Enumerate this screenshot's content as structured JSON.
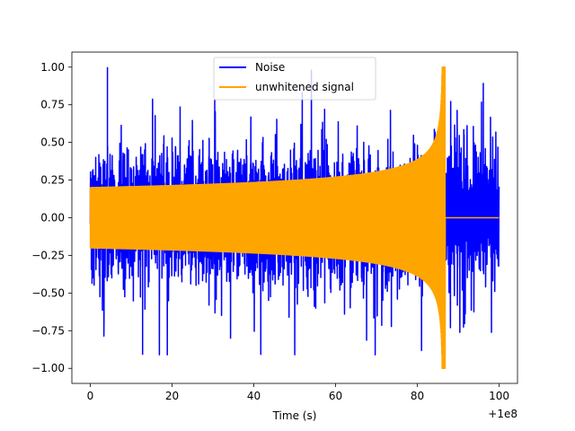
{
  "chart_data": {
    "type": "line",
    "title": "",
    "xlabel": "Time (s)",
    "ylabel": "",
    "x_offset_label": "+1e8",
    "xlim": [
      -4.5,
      104.5
    ],
    "ylim": [
      -1.1,
      1.1
    ],
    "x_ticks": [
      0,
      20,
      40,
      60,
      80,
      100
    ],
    "x_tick_labels": [
      "0",
      "20",
      "40",
      "60",
      "80",
      "100"
    ],
    "y_ticks": [
      -1.0,
      -0.75,
      -0.5,
      -0.25,
      0.0,
      0.25,
      0.5,
      0.75,
      1.0
    ],
    "y_tick_labels": [
      "−1.00",
      "−0.75",
      "−0.50",
      "−0.25",
      "0.00",
      "0.25",
      "0.50",
      "0.75",
      "1.00"
    ],
    "grid": false,
    "legend_position": "top-center",
    "series": [
      {
        "name": "Noise",
        "color": "#0000ff",
        "x_range": [
          0,
          100
        ],
        "baseline_amplitude": 0.22,
        "peak_max": 1.0,
        "peak_min": -0.91
      },
      {
        "name": "unwhitened signal",
        "color": "#ffa500",
        "x_range": [
          0,
          100
        ],
        "amplitude_at_start": 0.2,
        "merger_time": 86.2,
        "peak_amplitude": 1.0,
        "post_merger_amplitude": 0.0
      }
    ]
  }
}
